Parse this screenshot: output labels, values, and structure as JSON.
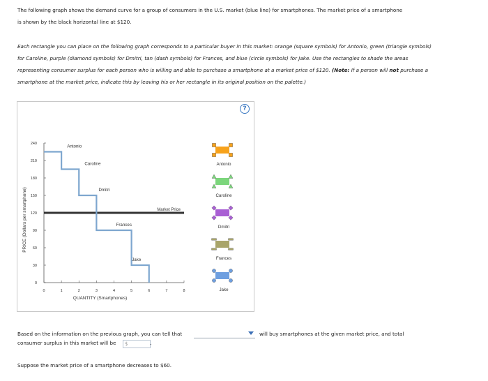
{
  "intro": "The following graph shows the demand curve for a group of consumers in the U.S. market (blue line) for smartphones. The market price of a smartphone is shown by the black horizontal line at $120.",
  "instructions_part1": "Each rectangle you can place on the following graph corresponds to a particular buyer in this market: orange (square symbols) for Antonio, green (triangle symbols) for Caroline, purple (diamond symbols) for Dmitri, tan (dash symbols) for Frances, and blue (circle symbols) for Jake. Use the rectangles to shade the areas representing consumer surplus for each person who is willing and able to purchase a smartphone at a market price of $120.",
  "note_label": "(Note:",
  "note_text_a": "If a person will",
  "note_not": "not",
  "note_text_b": "purchase a smartphone at the market price, indicate this by leaving his or her rectangle in its original position on the palette.)",
  "help_icon_label": "?",
  "chart_data": {
    "type": "line",
    "xlabel": "QUANTITY (Smartphones)",
    "ylabel": "PRICE (Dollars per smartphone)",
    "xlim": [
      0,
      8
    ],
    "ylim": [
      0,
      240
    ],
    "xticks": [
      "0",
      "1",
      "2",
      "3",
      "4",
      "5",
      "6",
      "7",
      "8"
    ],
    "yticks": [
      "0",
      "30",
      "60",
      "90",
      "120",
      "150",
      "180",
      "210",
      "240"
    ],
    "series": [
      {
        "points": [
          [
            0,
            225
          ],
          [
            1,
            225
          ],
          [
            1,
            195
          ],
          [
            2,
            195
          ],
          [
            2,
            150
          ],
          [
            3,
            150
          ],
          [
            3,
            90
          ],
          [
            4,
            90
          ],
          [
            4,
            90
          ],
          [
            5,
            90
          ],
          [
            5,
            30
          ],
          [
            6,
            30
          ],
          [
            6,
            0
          ]
        ],
        "color": "#7ea7cf"
      }
    ],
    "market_price": {
      "value": 120,
      "label": "Market Price",
      "color": "#333333"
    },
    "annotations": [
      {
        "text": "Antonio",
        "x": 1.8,
        "y": 230
      },
      {
        "text": "Caroline",
        "x": 2.8,
        "y": 200
      },
      {
        "text": "Dmitri",
        "x": 3.6,
        "y": 155
      },
      {
        "text": "Frances",
        "x": 4.6,
        "y": 95
      },
      {
        "text": "Jake",
        "x": 5.5,
        "y": 35
      }
    ]
  },
  "palette": [
    {
      "name": "Antonio",
      "color": "#f7a21b",
      "symbol": "square"
    },
    {
      "name": "Caroline",
      "color": "#7cd67c",
      "symbol": "triangle"
    },
    {
      "name": "Dmitri",
      "color": "#a95fd4",
      "symbol": "diamond"
    },
    {
      "name": "Frances",
      "color": "#a9a56a",
      "symbol": "dash"
    },
    {
      "name": "Jake",
      "color": "#6e9fe0",
      "symbol": "circle"
    }
  ],
  "answer_prefix": "Based on the information on the previous graph, you can tell that",
  "answer_suffix_1": "will buy smartphones at the given market price, and total",
  "answer_line2": "consumer surplus in this market will be",
  "dollar_placeholder": "$",
  "period": ".",
  "suppose": "Suppose the market price of a smartphone decreases to $60."
}
